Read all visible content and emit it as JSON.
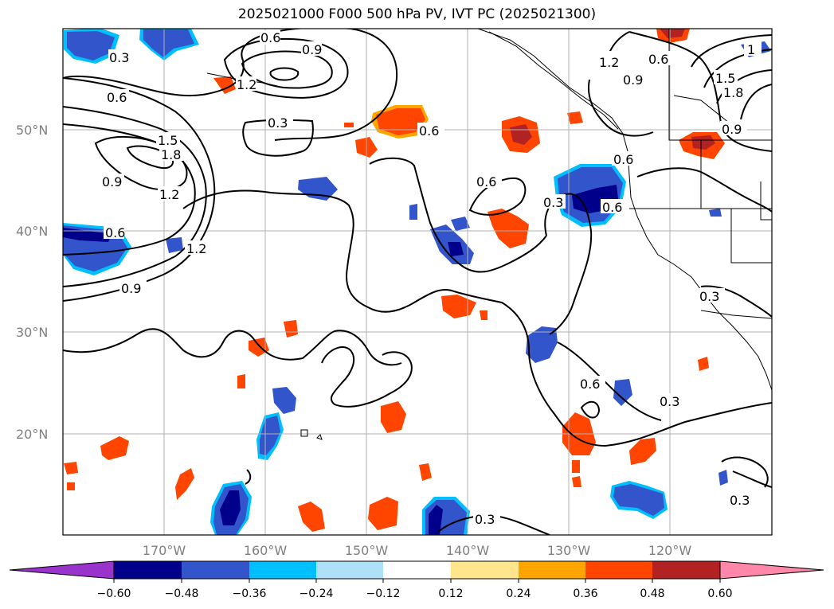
{
  "title": "2025021000 F000 500 hPa PV, IVT PC (2025021300)",
  "map": {
    "lat_labels": [
      "50°N",
      "40°N",
      "30°N",
      "20°N"
    ],
    "lon_labels": [
      "170°W",
      "160°W",
      "150°W",
      "140°W",
      "130°W",
      "120°W"
    ],
    "contour_labels": [
      "0.3",
      "0.6",
      "0.9",
      "1.2",
      "1.5",
      "1.8",
      "1"
    ]
  },
  "colorbar": {
    "ticks": [
      "−0.60",
      "−0.48",
      "−0.36",
      "−0.24",
      "−0.12",
      "0.12",
      "0.24",
      "0.36",
      "0.48",
      "0.60"
    ],
    "colors": [
      "#9933cc",
      "#00008b",
      "#3355cc",
      "#00bfff",
      "#aee0f8",
      "#ffffff",
      "#ffe68c",
      "#ffa500",
      "#ff4500",
      "#b22222",
      "#ff88aa"
    ]
  },
  "palette": {
    "dark_blue": "#00008b",
    "mid_blue": "#3355cc",
    "cyan": "#00bfff",
    "light_blue": "#aee0f8",
    "yellow": "#ffe68c",
    "orange": "#ffa500",
    "red_orange": "#ff4500",
    "dark_red": "#b22222"
  }
}
